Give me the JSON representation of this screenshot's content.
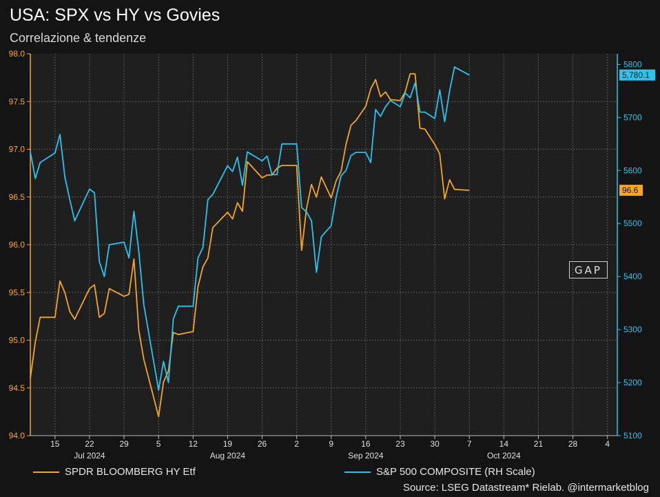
{
  "title": "USA: SPX vs HY vs Govies",
  "subtitle": "Correlazione & tendenze",
  "source": "Source: LSEG Datastream* Rielab. @intermarketblog",
  "logo_text": "GAP",
  "colors": {
    "hy": "#f5a623",
    "spx": "#29c4f0",
    "background": "#141414",
    "plot_background": "#1f1f1f",
    "grid": "#5a5a5a"
  },
  "chart_data": {
    "type": "line",
    "x_axis": {
      "day_ticks": [
        "15",
        "22",
        "29",
        "5",
        "12",
        "19",
        "26",
        "2",
        "9",
        "16",
        "23",
        "30",
        "7",
        "14",
        "21",
        "28",
        "4"
      ],
      "month_labels": [
        "Jul 2024",
        "Aug 2024",
        "Sep 2024",
        "Oct 2024"
      ],
      "range": [
        "2024-07-10",
        "2024-11-06"
      ]
    },
    "y_left": {
      "ticks": [
        "94.0",
        "94.5",
        "95.0",
        "95.5",
        "96.0",
        "96.5",
        "97.0",
        "97.5",
        "98.0"
      ],
      "range": [
        94.0,
        98.0
      ]
    },
    "y_right": {
      "ticks": [
        "5100",
        "5200",
        "5300",
        "5400",
        "5500",
        "5600",
        "5700",
        "5800"
      ],
      "range": [
        5100,
        5820
      ]
    },
    "series": [
      {
        "name": "SPDR BLOOMBERG HY Etf",
        "axis": "left",
        "last_label": "96.6",
        "points": [
          [
            "2024-07-10",
            94.6
          ],
          [
            "2024-07-11",
            94.98
          ],
          [
            "2024-07-12",
            95.24
          ],
          [
            "2024-07-15",
            95.24
          ],
          [
            "2024-07-16",
            95.62
          ],
          [
            "2024-07-17",
            95.5
          ],
          [
            "2024-07-18",
            95.3
          ],
          [
            "2024-07-19",
            95.22
          ],
          [
            "2024-07-22",
            95.54
          ],
          [
            "2024-07-23",
            95.58
          ],
          [
            "2024-07-24",
            95.24
          ],
          [
            "2024-07-25",
            95.28
          ],
          [
            "2024-07-26",
            95.54
          ],
          [
            "2024-07-29",
            95.46
          ],
          [
            "2024-07-30",
            95.48
          ],
          [
            "2024-07-31",
            95.85
          ],
          [
            "2024-08-01",
            95.1
          ],
          [
            "2024-08-02",
            94.8
          ],
          [
            "2024-08-05",
            94.2
          ],
          [
            "2024-08-06",
            94.56
          ],
          [
            "2024-08-07",
            94.68
          ],
          [
            "2024-08-08",
            95.08
          ],
          [
            "2024-08-09",
            95.06
          ],
          [
            "2024-08-12",
            95.09
          ],
          [
            "2024-08-13",
            95.56
          ],
          [
            "2024-08-14",
            95.77
          ],
          [
            "2024-08-15",
            95.86
          ],
          [
            "2024-08-16",
            96.18
          ],
          [
            "2024-08-19",
            96.34
          ],
          [
            "2024-08-20",
            96.27
          ],
          [
            "2024-08-21",
            96.44
          ],
          [
            "2024-08-22",
            96.35
          ],
          [
            "2024-08-23",
            96.87
          ],
          [
            "2024-08-26",
            96.7
          ],
          [
            "2024-08-27",
            96.73
          ],
          [
            "2024-08-28",
            96.73
          ],
          [
            "2024-08-29",
            96.8
          ],
          [
            "2024-08-30",
            96.83
          ],
          [
            "2024-09-02",
            96.83
          ],
          [
            "2024-09-03",
            95.94
          ],
          [
            "2024-09-04",
            96.38
          ],
          [
            "2024-09-05",
            96.63
          ],
          [
            "2024-09-06",
            96.5
          ],
          [
            "2024-09-07",
            96.71
          ],
          [
            "2024-09-09",
            96.49
          ],
          [
            "2024-09-10",
            96.67
          ],
          [
            "2024-09-11",
            96.77
          ],
          [
            "2024-09-12",
            97.05
          ],
          [
            "2024-09-13",
            97.25
          ],
          [
            "2024-09-14",
            97.3
          ],
          [
            "2024-09-16",
            97.45
          ],
          [
            "2024-09-17",
            97.63
          ],
          [
            "2024-09-18",
            97.73
          ],
          [
            "2024-09-19",
            97.55
          ],
          [
            "2024-09-20",
            97.6
          ],
          [
            "2024-09-21",
            97.52
          ],
          [
            "2024-09-23",
            97.51
          ],
          [
            "2024-09-24",
            97.6
          ],
          [
            "2024-09-25",
            97.79
          ],
          [
            "2024-09-26",
            97.79
          ],
          [
            "2024-09-27",
            97.22
          ],
          [
            "2024-09-28",
            97.21
          ],
          [
            "2024-09-30",
            97.05
          ],
          [
            "2024-10-01",
            96.95
          ],
          [
            "2024-10-02",
            96.48
          ],
          [
            "2024-10-03",
            96.68
          ],
          [
            "2024-10-04",
            96.58
          ],
          [
            "2024-10-07",
            96.57
          ]
        ]
      },
      {
        "name": "S&P 500 COMPOSITE (RH Scale)",
        "axis": "right",
        "last_label": "5,780.1",
        "points": [
          [
            "2024-07-10",
            5635
          ],
          [
            "2024-07-11",
            5585
          ],
          [
            "2024-07-12",
            5615
          ],
          [
            "2024-07-15",
            5633
          ],
          [
            "2024-07-16",
            5668
          ],
          [
            "2024-07-17",
            5588
          ],
          [
            "2024-07-18",
            5545
          ],
          [
            "2024-07-19",
            5505
          ],
          [
            "2024-07-22",
            5565
          ],
          [
            "2024-07-23",
            5558
          ],
          [
            "2024-07-24",
            5428
          ],
          [
            "2024-07-25",
            5400
          ],
          [
            "2024-07-26",
            5460
          ],
          [
            "2024-07-29",
            5465
          ],
          [
            "2024-07-30",
            5435
          ],
          [
            "2024-07-31",
            5523
          ],
          [
            "2024-08-01",
            5447
          ],
          [
            "2024-08-02",
            5347
          ],
          [
            "2024-08-05",
            5186
          ],
          [
            "2024-08-06",
            5240
          ],
          [
            "2024-08-07",
            5200
          ],
          [
            "2024-08-08",
            5320
          ],
          [
            "2024-08-09",
            5344
          ],
          [
            "2024-08-12",
            5344
          ],
          [
            "2024-08-13",
            5435
          ],
          [
            "2024-08-14",
            5455
          ],
          [
            "2024-08-15",
            5545
          ],
          [
            "2024-08-16",
            5555
          ],
          [
            "2024-08-19",
            5609
          ],
          [
            "2024-08-20",
            5598
          ],
          [
            "2024-08-21",
            5625
          ],
          [
            "2024-08-22",
            5572
          ],
          [
            "2024-08-23",
            5635
          ],
          [
            "2024-08-26",
            5618
          ],
          [
            "2024-08-27",
            5627
          ],
          [
            "2024-08-28",
            5592
          ],
          [
            "2024-08-29",
            5592
          ],
          [
            "2024-08-30",
            5650
          ],
          [
            "2024-09-02",
            5650
          ],
          [
            "2024-09-03",
            5530
          ],
          [
            "2024-09-04",
            5522
          ],
          [
            "2024-09-05",
            5505
          ],
          [
            "2024-09-06",
            5408
          ],
          [
            "2024-09-07",
            5475
          ],
          [
            "2024-09-09",
            5496
          ],
          [
            "2024-09-10",
            5550
          ],
          [
            "2024-09-11",
            5590
          ],
          [
            "2024-09-12",
            5600
          ],
          [
            "2024-09-13",
            5628
          ],
          [
            "2024-09-14",
            5634
          ],
          [
            "2024-09-16",
            5634
          ],
          [
            "2024-09-17",
            5615
          ],
          [
            "2024-09-18",
            5715
          ],
          [
            "2024-09-19",
            5702
          ],
          [
            "2024-09-20",
            5720
          ],
          [
            "2024-09-21",
            5732
          ],
          [
            "2024-09-23",
            5720
          ],
          [
            "2024-09-24",
            5746
          ],
          [
            "2024-09-25",
            5737
          ],
          [
            "2024-09-26",
            5765
          ],
          [
            "2024-09-27",
            5710
          ],
          [
            "2024-09-28",
            5710
          ],
          [
            "2024-09-30",
            5698
          ],
          [
            "2024-10-01",
            5752
          ],
          [
            "2024-10-02",
            5692
          ],
          [
            "2024-10-03",
            5750
          ],
          [
            "2024-10-04",
            5795
          ],
          [
            "2024-10-07",
            5780
          ]
        ]
      }
    ],
    "grid": true,
    "legend_position": "bottom"
  }
}
